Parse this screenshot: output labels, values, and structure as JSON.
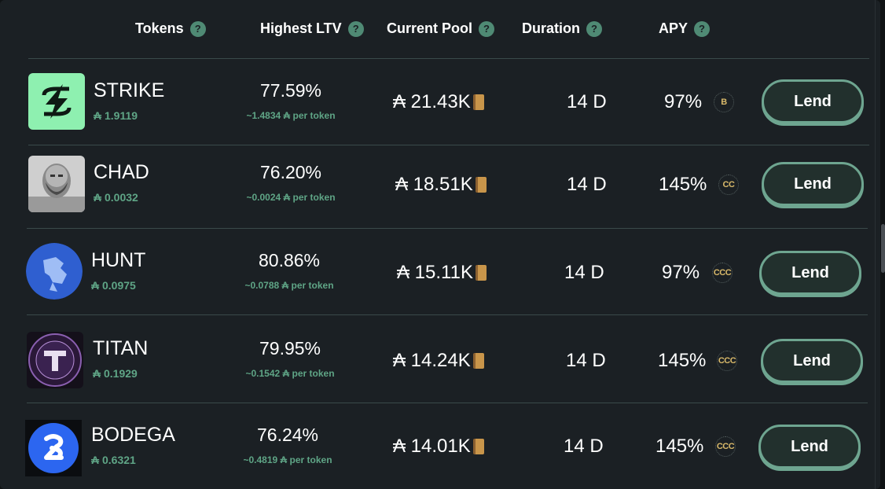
{
  "header": {
    "tokens": "Tokens",
    "highest_ltv": "Highest LTV",
    "current_pool": "Current Pool",
    "duration": "Duration",
    "apy": "APY",
    "help": "?"
  },
  "rows": [
    {
      "name": "STRIKE",
      "price": "₳ 1.9119",
      "ltv": "77.59%",
      "ltv_sub": "~1.4834 ₳ per token",
      "pool": "₳ 21.43K",
      "duration": "14 D",
      "apy": "97%",
      "rating": "B",
      "action": "Lend",
      "logo_bg": "#8ef0b0"
    },
    {
      "name": "CHAD",
      "price": "₳ 0.0032",
      "ltv": "76.20%",
      "ltv_sub": "~0.0024 ₳ per token",
      "pool": "₳ 18.51K",
      "duration": "14 D",
      "apy": "145%",
      "rating": "CC",
      "action": "Lend",
      "logo_bg": "#bdbdbd"
    },
    {
      "name": "HUNT",
      "price": "₳ 0.0975",
      "ltv": "80.86%",
      "ltv_sub": "~0.0788 ₳ per token",
      "pool": "₳ 15.11K",
      "duration": "14 D",
      "apy": "97%",
      "rating": "CCC",
      "action": "Lend",
      "logo_bg": "#2f5fd0"
    },
    {
      "name": "TITAN",
      "price": "₳ 0.1929",
      "ltv": "79.95%",
      "ltv_sub": "~0.1542 ₳ per token",
      "pool": "₳ 14.24K",
      "duration": "14 D",
      "apy": "145%",
      "rating": "CCC",
      "action": "Lend",
      "logo_bg": "#2a1838"
    },
    {
      "name": "BODEGA",
      "price": "₳ 0.6321",
      "ltv": "76.24%",
      "ltv_sub": "~0.4819 ₳ per token",
      "pool": "₳ 14.01K",
      "duration": "14 D",
      "apy": "145%",
      "rating": "CCC",
      "action": "Lend",
      "logo_bg": "#2c66f0"
    }
  ]
}
